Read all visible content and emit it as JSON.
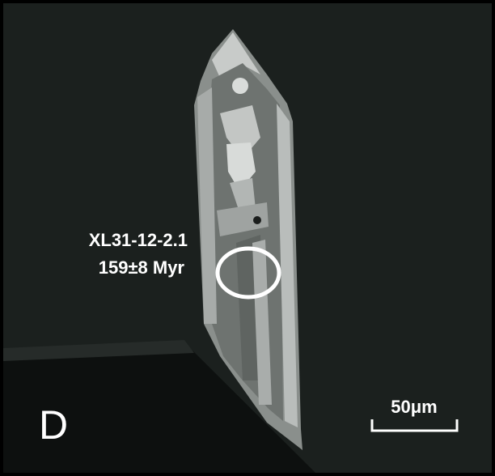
{
  "panel_label": "D",
  "spot": {
    "id": "XL31-12-2.1",
    "age": "159±8 Myr"
  },
  "scale_bar": {
    "label": "50μm"
  }
}
